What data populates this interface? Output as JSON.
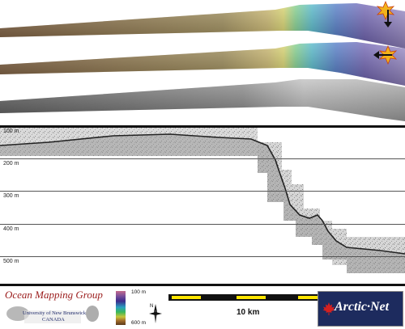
{
  "depth_axis": {
    "labels": [
      "100 m",
      "200 m",
      "300 m",
      "400 m",
      "500 m"
    ]
  },
  "logo": {
    "title": "Ocean Mapping Group",
    "university": "University of New Brunswick",
    "country": "CANADA"
  },
  "colorbar": {
    "min_label": "100 m",
    "max_label": "600 m"
  },
  "compass": {
    "label": "N"
  },
  "scalebar": {
    "label": "10 km"
  },
  "sponsor": {
    "name": "ArcticNet",
    "display": "Arctic·Net"
  },
  "icons": [
    "sun-arrow-down-icon",
    "sun-arrow-left-icon",
    "maple-leaf-icon",
    "north-arrow-icon"
  ],
  "colors": {
    "accent_red": "#9b1c1c",
    "navy": "#1d2b5e",
    "scale_yellow": "#ffe600"
  }
}
